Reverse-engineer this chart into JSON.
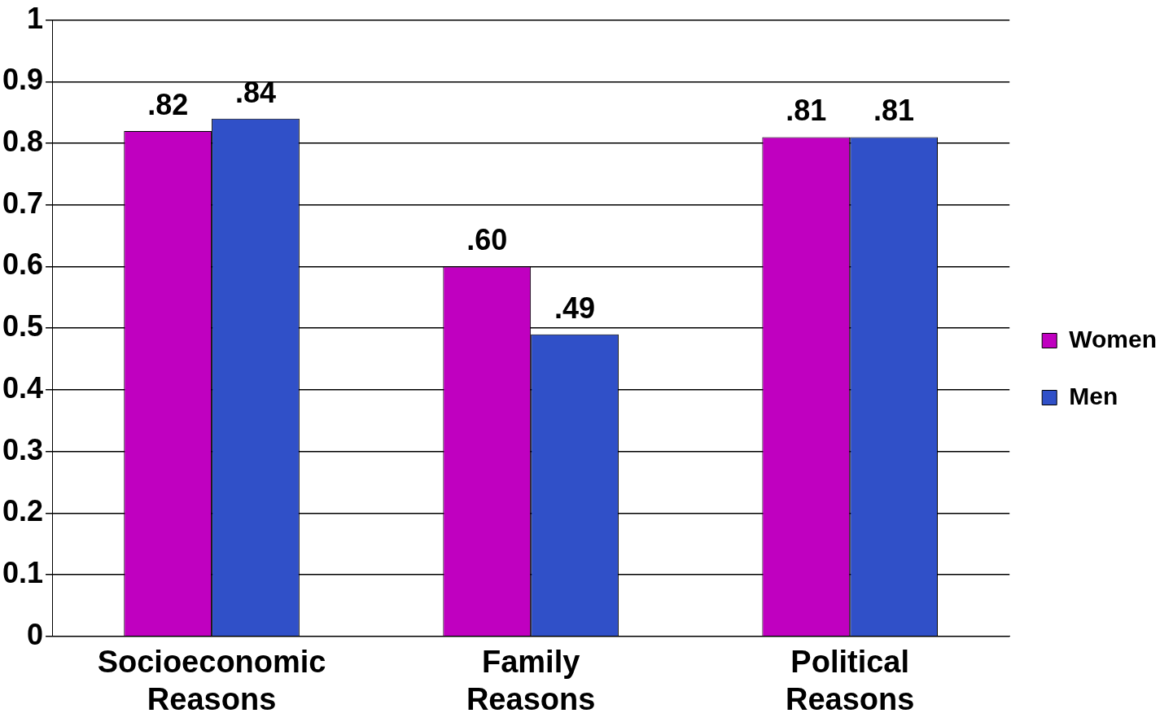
{
  "chart_data": {
    "type": "bar",
    "categories": [
      "Socioeconomic Reasons",
      "Family Reasons",
      "Political Reasons"
    ],
    "series": [
      {
        "name": "Women",
        "color": "#c000c0",
        "values": [
          0.82,
          0.6,
          0.81
        ],
        "value_labels": [
          ".82",
          ".60",
          ".81"
        ]
      },
      {
        "name": "Men",
        "color": "#3050c8",
        "values": [
          0.84,
          0.49,
          0.81
        ],
        "value_labels": [
          ".84",
          ".49",
          ".81"
        ]
      }
    ],
    "ylim": [
      0,
      1
    ],
    "yticks": [
      0,
      0.1,
      0.2,
      0.3,
      0.4,
      0.5,
      0.6,
      0.7,
      0.8,
      0.9,
      1
    ],
    "grid": "y",
    "legend": "right"
  }
}
